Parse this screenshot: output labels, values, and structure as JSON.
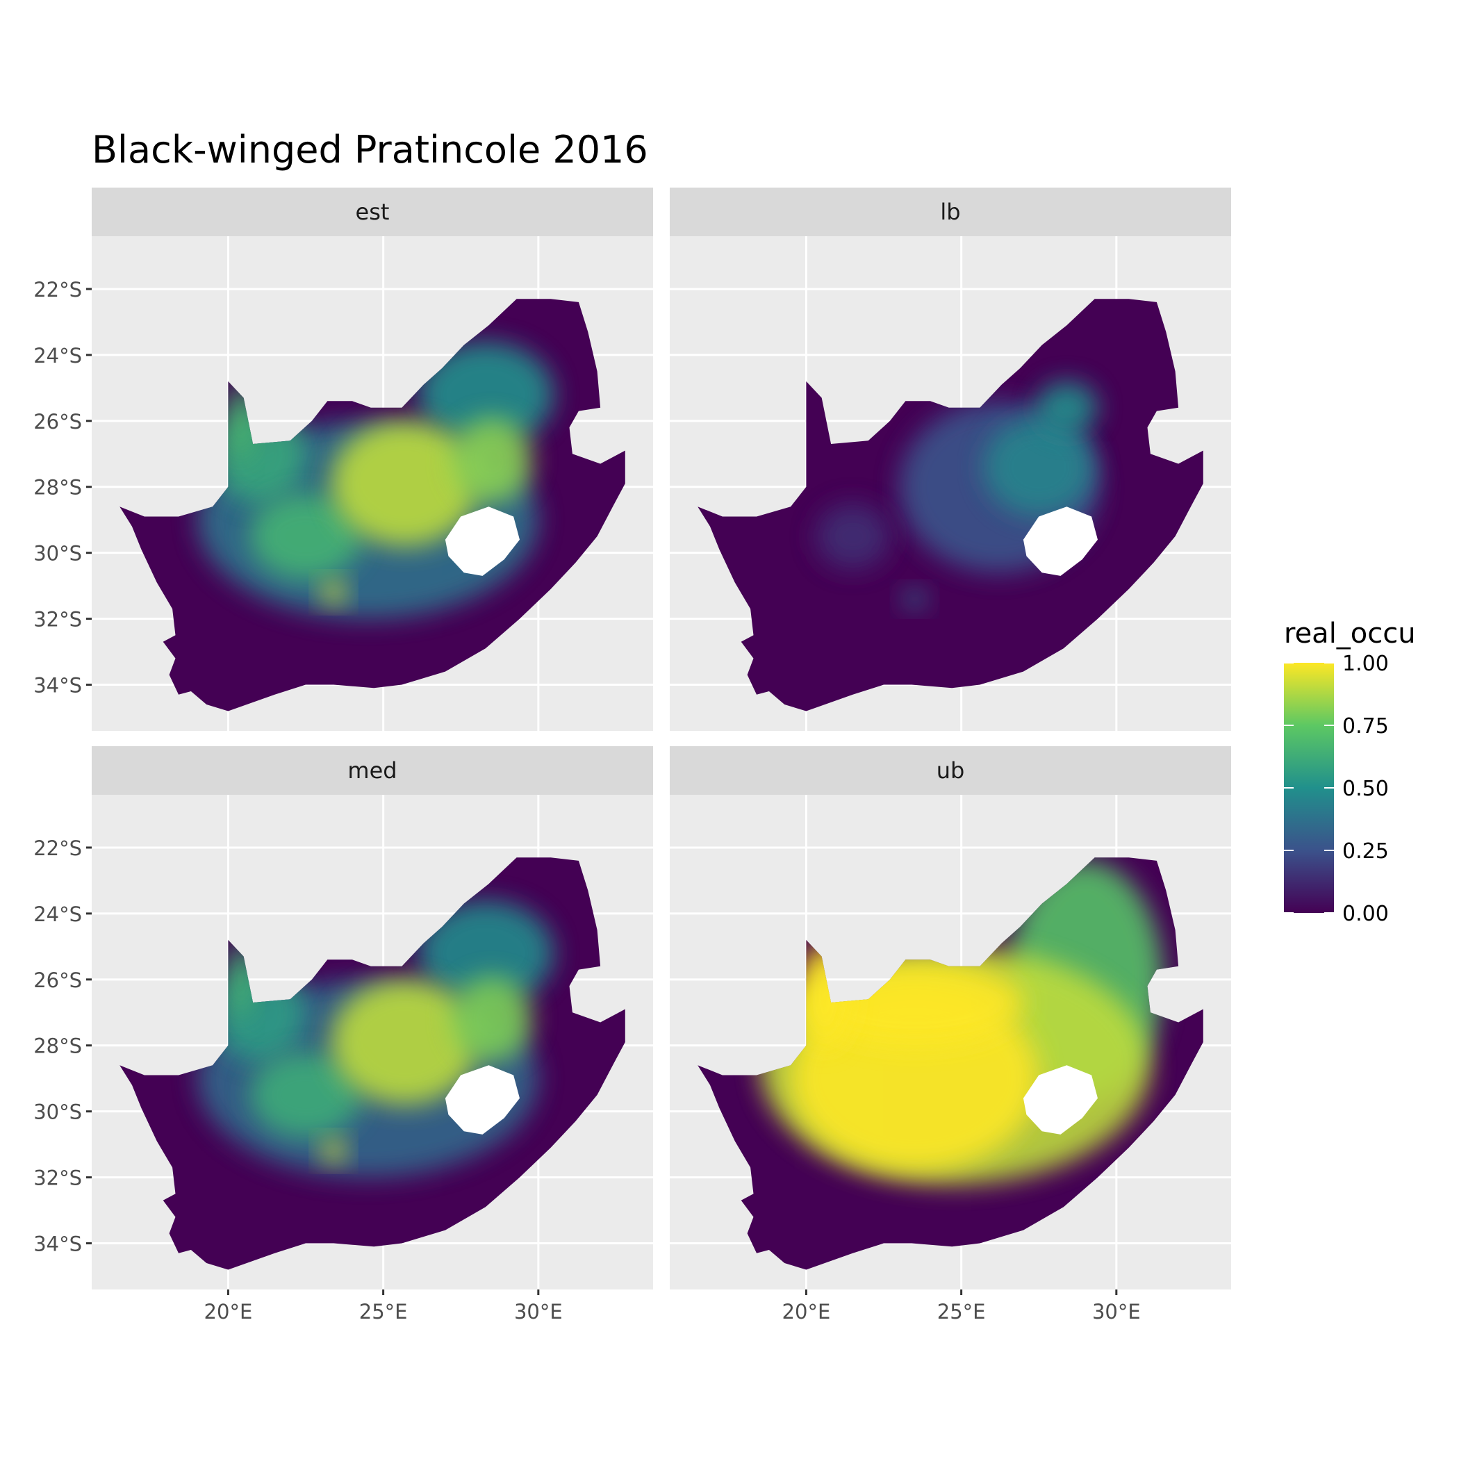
{
  "chart_data": {
    "type": "heatmap",
    "title": "Black-winged Pratincole 2016",
    "xlabel": "",
    "ylabel": "",
    "facets": [
      "est",
      "lb",
      "med",
      "ub"
    ],
    "x_ticks": [
      "20°E",
      "25°E",
      "30°E"
    ],
    "x_tick_values": [
      20,
      25,
      30
    ],
    "y_ticks": [
      "22°S",
      "24°S",
      "26°S",
      "28°S",
      "30°S",
      "32°S",
      "34°S"
    ],
    "y_tick_values": [
      -22,
      -24,
      -26,
      -28,
      -30,
      -32,
      -34
    ],
    "xlim": [
      15.6,
      33.7
    ],
    "ylim": [
      -35.4,
      -20.4
    ],
    "grid": true,
    "legend": {
      "title": "real_occu",
      "position": "right",
      "labels": [
        "1.00",
        "0.75",
        "0.50",
        "0.25",
        "0.00"
      ],
      "values": [
        1.0,
        0.75,
        0.5,
        0.25,
        0.0
      ],
      "colormap": "viridis",
      "colors": [
        "#440154",
        "#3b528b",
        "#21908c",
        "#5dc863",
        "#fde725"
      ]
    },
    "colors": {
      "panel_bg": "#ebebeb",
      "grid": "#ffffff",
      "strip_bg": "#d9d9d9",
      "land_low": "#440154",
      "lesotho": "#ffffff"
    }
  }
}
